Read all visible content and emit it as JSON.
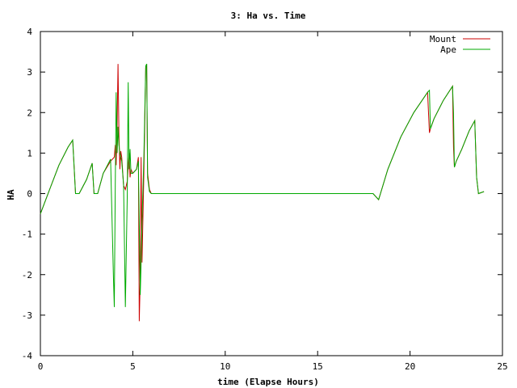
{
  "chart_data": {
    "type": "line",
    "title": "3: Ha vs. Time",
    "xlabel": "time (Elapse Hours)",
    "ylabel": "HA",
    "xlim": [
      0,
      25
    ],
    "ylim": [
      -4,
      4
    ],
    "xticks": [
      0,
      5,
      10,
      15,
      20,
      25
    ],
    "yticks": [
      -4,
      -3,
      -2,
      -1,
      0,
      1,
      2,
      3,
      4
    ],
    "grid": false,
    "legend_position": "top-right",
    "series": [
      {
        "name": "Mount",
        "color": "#cc0000",
        "x": [
          0,
          0.5,
          1.0,
          1.5,
          1.75,
          1.9,
          2.1,
          2.5,
          2.8,
          2.9,
          3.1,
          3.4,
          3.8,
          4.0,
          4.05,
          4.1,
          4.15,
          4.2,
          4.25,
          4.3,
          4.35,
          4.4,
          4.5,
          4.6,
          4.7,
          4.8,
          4.85,
          4.9,
          5.0,
          5.2,
          5.3,
          5.35,
          5.4,
          5.45,
          5.5,
          5.6,
          5.7,
          5.75,
          5.8,
          5.9,
          6.0,
          8.0,
          10.0,
          12.0,
          14.0,
          16.0,
          18.0,
          18.3,
          18.8,
          19.5,
          20.2,
          20.95,
          21.05,
          21.1,
          21.3,
          21.8,
          22.3,
          22.35,
          22.4,
          22.5,
          22.8,
          23.2,
          23.5,
          23.6,
          23.7,
          24.0
        ],
        "y": [
          -0.5,
          0.1,
          0.7,
          1.15,
          1.32,
          0.0,
          0.0,
          0.35,
          0.75,
          0.0,
          0.0,
          0.5,
          0.8,
          0.9,
          1.2,
          0.7,
          1.7,
          3.2,
          1.5,
          0.6,
          1.05,
          0.9,
          0.2,
          0.1,
          0.3,
          1.0,
          0.4,
          0.6,
          0.5,
          0.6,
          0.9,
          -3.15,
          -2.1,
          0.9,
          -1.7,
          0.5,
          3.1,
          3.2,
          0.5,
          0.1,
          0.0,
          0.0,
          0.0,
          0.0,
          0.0,
          0.0,
          0.0,
          -0.15,
          0.6,
          1.4,
          2.0,
          2.5,
          1.5,
          1.6,
          1.85,
          2.3,
          2.65,
          1.15,
          0.65,
          0.8,
          1.1,
          1.55,
          1.8,
          0.4,
          0.0,
          0.05
        ]
      },
      {
        "name": "Ape",
        "color": "#00aa00",
        "x": [
          0,
          0.5,
          1.0,
          1.5,
          1.75,
          1.9,
          2.1,
          2.5,
          2.8,
          2.9,
          3.1,
          3.4,
          3.8,
          3.95,
          4.0,
          4.05,
          4.1,
          4.15,
          4.2,
          4.25,
          4.3,
          4.4,
          4.5,
          4.6,
          4.7,
          4.75,
          4.8,
          4.85,
          4.9,
          5.0,
          5.2,
          5.3,
          5.4,
          5.45,
          5.5,
          5.6,
          5.7,
          5.75,
          5.8,
          5.9,
          6.0,
          8.0,
          10.0,
          12.0,
          14.0,
          16.0,
          18.0,
          18.3,
          18.8,
          19.5,
          20.2,
          20.95,
          21.05,
          21.1,
          21.3,
          21.8,
          22.3,
          22.35,
          22.4,
          22.5,
          22.8,
          23.2,
          23.5,
          23.6,
          23.7,
          24.0
        ],
        "y": [
          -0.5,
          0.1,
          0.7,
          1.15,
          1.32,
          0.0,
          0.0,
          0.35,
          0.75,
          0.0,
          0.0,
          0.5,
          0.85,
          -2.05,
          -2.8,
          0.2,
          2.5,
          1.0,
          1.65,
          1.2,
          1.0,
          0.8,
          0.2,
          -2.8,
          -0.1,
          2.75,
          0.6,
          1.1,
          0.5,
          0.5,
          0.6,
          0.8,
          -2.5,
          -1.7,
          -0.7,
          0.9,
          3.15,
          3.2,
          0.4,
          0.05,
          0.0,
          0.0,
          0.0,
          0.0,
          0.0,
          0.0,
          0.0,
          -0.15,
          0.6,
          1.4,
          2.0,
          2.5,
          2.55,
          1.6,
          1.85,
          2.3,
          2.65,
          2.0,
          0.65,
          0.8,
          1.1,
          1.55,
          1.8,
          0.4,
          0.0,
          0.05
        ]
      }
    ]
  }
}
